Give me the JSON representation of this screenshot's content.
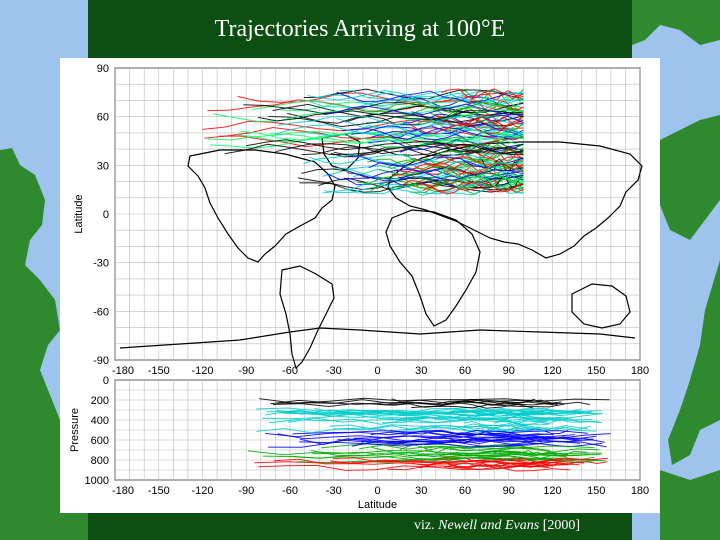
{
  "slide": {
    "title": "Trajectories Arriving at 100°E",
    "citation_prefix": "viz. ",
    "citation_authors": "Newell and Evans",
    "citation_year": " [2000]"
  },
  "colors": {
    "background_sea": "#9ec3ec",
    "background_land": "#2f8a2f",
    "panel": "#0d4f12",
    "title_text": "#ffffff"
  },
  "chart_data": [
    {
      "type": "map",
      "title": "",
      "xlabel": "",
      "ylabel": "Latitude",
      "xlim": [
        -180,
        180
      ],
      "ylim": [
        -90,
        90
      ],
      "x_ticks": [
        -150,
        -120,
        -90,
        -60,
        -30,
        0,
        30,
        60,
        90,
        120,
        150,
        180
      ],
      "x_tick_first_label": "-180",
      "y_ticks": [
        90,
        60,
        30,
        0,
        -30,
        -60,
        -90
      ],
      "grid": true,
      "trajectory_bands": [
        {
          "lat_range": [
            35,
            75
          ],
          "lon_range": [
            -120,
            100
          ],
          "description": "northern band"
        },
        {
          "lat_range": [
            15,
            35
          ],
          "lon_range": [
            -60,
            100
          ],
          "description": "southern band"
        }
      ],
      "series_colors": [
        "#000000",
        "#00cccc",
        "#0000ff",
        "#00aa00",
        "#ff0000",
        "#00ff66"
      ]
    },
    {
      "type": "line",
      "title": "",
      "xlabel": "Latitude",
      "ylabel": "Pressure",
      "xlim": [
        -180,
        180
      ],
      "ylim": [
        1000,
        0
      ],
      "x_ticks": [
        -150,
        -120,
        -90,
        -60,
        -30,
        0,
        30,
        60,
        90,
        120,
        150,
        180
      ],
      "x_tick_first_label": "-180",
      "y_ticks": [
        0,
        200,
        400,
        600,
        800,
        1000
      ],
      "grid": true,
      "series_colors": [
        "#000000",
        "#00cccc",
        "#0000ff",
        "#00aa00",
        "#ff0000"
      ]
    }
  ]
}
